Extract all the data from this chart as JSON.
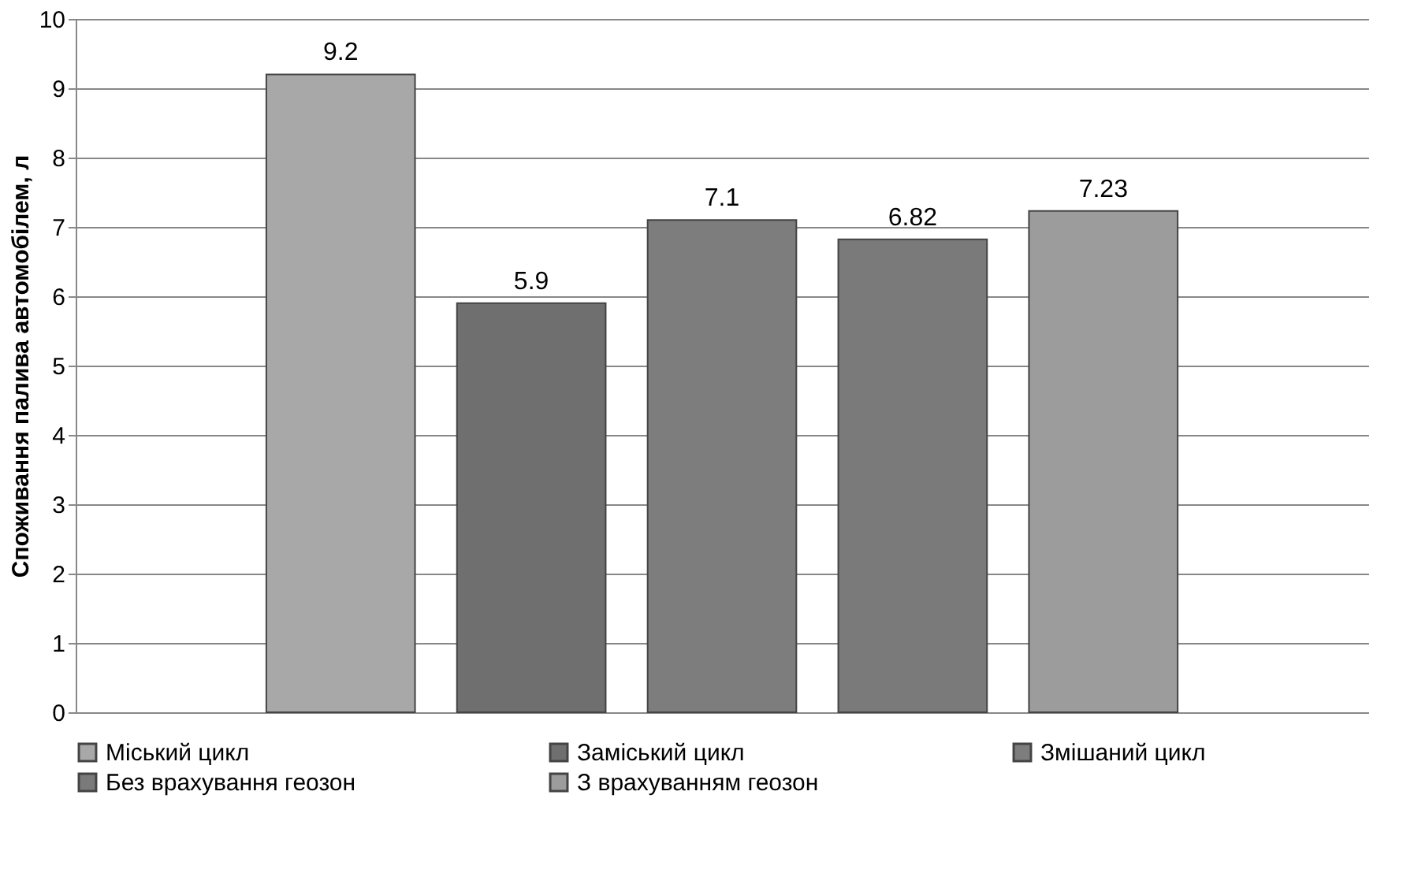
{
  "chart_data": {
    "type": "bar",
    "ylabel": "Споживання палива автомобілем, л",
    "categories": [
      null
    ],
    "series": [
      {
        "name": "Міський цикл",
        "color": "#a8a8a8",
        "values": [
          9.2
        ]
      },
      {
        "name": "Заміський цикл",
        "color": "#6f6f6f",
        "values": [
          5.9
        ]
      },
      {
        "name": "Змішаний цикл",
        "color": "#7d7d7d",
        "values": [
          7.1
        ]
      },
      {
        "name": "Без врахування геозон",
        "color": "#7a7a7a",
        "values": [
          6.82
        ]
      },
      {
        "name": "З врахуванням геозон",
        "color": "#9c9c9c",
        "values": [
          7.23
        ]
      }
    ],
    "ylim": [
      0,
      10
    ],
    "yticks": [
      0,
      1,
      2,
      3,
      4,
      5,
      6,
      7,
      8,
      9,
      10
    ],
    "grid": "y",
    "legend": "bottom",
    "data_labels": true
  }
}
